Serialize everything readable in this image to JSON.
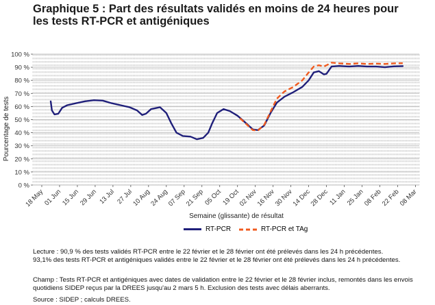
{
  "title_line1": "Graphique 5 : Part des résultats validés en moins de 24 heures pour",
  "title_line2": "les tests RT-PCR et antigéniques",
  "notes": {
    "lecture_1": "Lecture : 90,9 % des tests validés RT-PCR entre le 22 février et le 28 février ont été prélevés dans les 24 h précédentes.",
    "lecture_2": "93,1% des tests RT-PCR et antigéniques validés entre le 22 février et le 28 février ont été prélevés dans les 24 h précédentes.",
    "champ_1": "Champ : Tests RT-PCR et antigéniques avec dates de validation entre le 22 février et le 28 février inclus, remontés dans les envois",
    "champ_2": "quotidiens SIDEP reçus par la DREES jusqu'au 2 mars 5 h. Exclusion des tests avec délais aberrants.",
    "source": "Source : SIDEP ; calculs DREES."
  },
  "chart_data": {
    "type": "line",
    "title": "Graphique 5 : Part des résultats validés en moins de 24 heures pour les tests RT-PCR et antigéniques",
    "xlabel": "Semaine (glissante) de résultat",
    "ylabel": "Pourcentage de tests",
    "ylim": [
      0,
      100
    ],
    "yticks": [
      "0 %",
      "10 %",
      "20 %",
      "30 %",
      "40 %",
      "50 %",
      "60 %",
      "70 %",
      "80 %",
      "90 %",
      "100 %"
    ],
    "xticks": [
      "18 May",
      "01 Jun",
      "15 Jun",
      "29 Jun",
      "13 Jul",
      "27 Jul",
      "10 Aug",
      "24 Aug",
      "07 Sep",
      "21 Sep",
      "05 Oct",
      "19 Oct",
      "02 Nov",
      "16 Nov",
      "30 Nov",
      "14 Dec",
      "28 Dec",
      "11 Jan",
      "25 Jan",
      "08 Feb",
      "22 Feb",
      "08 Mar"
    ],
    "grid": true,
    "legend_position": "bottom",
    "series": [
      {
        "name": "RT-PCR",
        "color": "#1f1f7a",
        "style": "solid",
        "points": [
          [
            "2020-05-25",
            64
          ],
          [
            "2020-05-26",
            57
          ],
          [
            "2020-05-28",
            54
          ],
          [
            "2020-05-31",
            54.5
          ],
          [
            "2020-06-03",
            59
          ],
          [
            "2020-06-07",
            61
          ],
          [
            "2020-06-14",
            62.5
          ],
          [
            "2020-06-21",
            64
          ],
          [
            "2020-06-28",
            64.8
          ],
          [
            "2020-07-05",
            64.5
          ],
          [
            "2020-07-12",
            62.5
          ],
          [
            "2020-07-19",
            61
          ],
          [
            "2020-07-26",
            59.5
          ],
          [
            "2020-08-01",
            57
          ],
          [
            "2020-08-05",
            53.5
          ],
          [
            "2020-08-08",
            54.5
          ],
          [
            "2020-08-12",
            58
          ],
          [
            "2020-08-19",
            59.5
          ],
          [
            "2020-08-24",
            55
          ],
          [
            "2020-08-28",
            47
          ],
          [
            "2020-09-01",
            40
          ],
          [
            "2020-09-06",
            37.5
          ],
          [
            "2020-09-12",
            37
          ],
          [
            "2020-09-17",
            35
          ],
          [
            "2020-09-22",
            36
          ],
          [
            "2020-09-26",
            40
          ],
          [
            "2020-09-29",
            47
          ],
          [
            "2020-10-03",
            55
          ],
          [
            "2020-10-08",
            58
          ],
          [
            "2020-10-13",
            56.5
          ],
          [
            "2020-10-19",
            53
          ],
          [
            "2020-10-26",
            47
          ],
          [
            "2020-10-31",
            42.5
          ],
          [
            "2020-11-04",
            42
          ],
          [
            "2020-11-09",
            45.5
          ],
          [
            "2020-11-14",
            55
          ],
          [
            "2020-11-19",
            63
          ],
          [
            "2020-11-25",
            67.5
          ],
          [
            "2020-12-02",
            71
          ],
          [
            "2020-12-09",
            75
          ],
          [
            "2020-12-14",
            80
          ],
          [
            "2020-12-18",
            86
          ],
          [
            "2020-12-22",
            87
          ],
          [
            "2020-12-26",
            84.5
          ],
          [
            "2020-12-28",
            85
          ],
          [
            "2021-01-01",
            90.5
          ],
          [
            "2021-01-07",
            91
          ],
          [
            "2021-01-15",
            90.5
          ],
          [
            "2021-01-22",
            91
          ],
          [
            "2021-01-29",
            90.5
          ],
          [
            "2021-02-05",
            90.5
          ],
          [
            "2021-02-12",
            90
          ],
          [
            "2021-02-19",
            90.7
          ],
          [
            "2021-02-26",
            90.9
          ]
        ]
      },
      {
        "name": "RT-PCR et TAg",
        "color": "#f05a1e",
        "style": "dashed",
        "points": [
          [
            "2020-10-21",
            51
          ],
          [
            "2020-10-26",
            46.5
          ],
          [
            "2020-10-31",
            42
          ],
          [
            "2020-11-04",
            41.5
          ],
          [
            "2020-11-09",
            46
          ],
          [
            "2020-11-14",
            56
          ],
          [
            "2020-11-19",
            66
          ],
          [
            "2020-11-25",
            71.5
          ],
          [
            "2020-12-02",
            75
          ],
          [
            "2020-12-09",
            80
          ],
          [
            "2020-12-14",
            86
          ],
          [
            "2020-12-18",
            90.5
          ],
          [
            "2020-12-22",
            91.5
          ],
          [
            "2020-12-26",
            90.5
          ],
          [
            "2020-12-28",
            91.5
          ],
          [
            "2021-01-01",
            93.5
          ],
          [
            "2021-01-07",
            93
          ],
          [
            "2021-01-15",
            92.5
          ],
          [
            "2021-01-22",
            93
          ],
          [
            "2021-01-29",
            92.5
          ],
          [
            "2021-02-05",
            92.8
          ],
          [
            "2021-02-12",
            92.5
          ],
          [
            "2021-02-19",
            93
          ],
          [
            "2021-02-26",
            93.1
          ]
        ]
      }
    ]
  }
}
